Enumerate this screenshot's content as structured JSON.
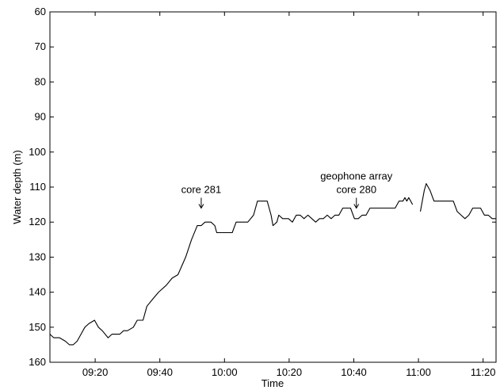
{
  "chart_data": {
    "type": "line",
    "title": "",
    "xlabel": "Time",
    "ylabel": "Water depth (m)",
    "x_unit": "minutes",
    "xlim": [
      9.1,
      11.4
    ],
    "ylim": [
      60,
      160
    ],
    "y_inverted": true,
    "xticks": [
      {
        "value": 9.3333,
        "label": "09:20"
      },
      {
        "value": 9.6667,
        "label": "09:40"
      },
      {
        "value": 10.0,
        "label": "10:00"
      },
      {
        "value": 10.3333,
        "label": "10:20"
      },
      {
        "value": 10.6667,
        "label": "10:40"
      },
      {
        "value": 11.0,
        "label": "11:00"
      },
      {
        "value": 11.3333,
        "label": "11:20"
      }
    ],
    "yticks": [
      60,
      70,
      80,
      90,
      100,
      110,
      120,
      130,
      140,
      150,
      160
    ],
    "grid": false,
    "series": [
      {
        "name": "",
        "color": "#000000",
        "segments": [
          [
            [
              9.1,
              152
            ],
            [
              9.12,
              153
            ],
            [
              9.15,
              153
            ],
            [
              9.18,
              154
            ],
            [
              9.2,
              155
            ],
            [
              9.22,
              155
            ],
            [
              9.24,
              154
            ],
            [
              9.26,
              152
            ],
            [
              9.28,
              150
            ],
            [
              9.3,
              149
            ],
            [
              9.33,
              148
            ],
            [
              9.35,
              150
            ],
            [
              9.37,
              151
            ],
            [
              9.4,
              153
            ],
            [
              9.42,
              152
            ],
            [
              9.44,
              152
            ],
            [
              9.46,
              152
            ],
            [
              9.48,
              151
            ],
            [
              9.5,
              151
            ],
            [
              9.53,
              150
            ],
            [
              9.55,
              148
            ],
            [
              9.58,
              148
            ],
            [
              9.6,
              144
            ],
            [
              9.63,
              142
            ],
            [
              9.66,
              140
            ],
            [
              9.7,
              138
            ],
            [
              9.73,
              136
            ],
            [
              9.76,
              135
            ],
            [
              9.8,
              130
            ],
            [
              9.83,
              125
            ],
            [
              9.86,
              121
            ],
            [
              9.88,
              121
            ],
            [
              9.9,
              120
            ],
            [
              9.93,
              120
            ],
            [
              9.95,
              121
            ],
            [
              9.96,
              123
            ],
            [
              9.98,
              123
            ],
            [
              10.0,
              123
            ],
            [
              10.02,
              123
            ],
            [
              10.04,
              123
            ],
            [
              10.06,
              120
            ],
            [
              10.08,
              120
            ],
            [
              10.1,
              120
            ],
            [
              10.12,
              120
            ],
            [
              10.15,
              118
            ],
            [
              10.17,
              114
            ],
            [
              10.2,
              114
            ],
            [
              10.22,
              114
            ],
            [
              10.24,
              118
            ],
            [
              10.25,
              121
            ],
            [
              10.27,
              120
            ],
            [
              10.28,
              118
            ],
            [
              10.3,
              119
            ],
            [
              10.33,
              119
            ],
            [
              10.35,
              120
            ],
            [
              10.37,
              118
            ],
            [
              10.39,
              118
            ],
            [
              10.41,
              119
            ],
            [
              10.43,
              118
            ],
            [
              10.45,
              119
            ],
            [
              10.47,
              120
            ],
            [
              10.49,
              119
            ],
            [
              10.51,
              119
            ],
            [
              10.53,
              118
            ],
            [
              10.55,
              119
            ],
            [
              10.57,
              118
            ],
            [
              10.59,
              118
            ],
            [
              10.61,
              116
            ],
            [
              10.63,
              116
            ],
            [
              10.65,
              116
            ],
            [
              10.67,
              119
            ],
            [
              10.69,
              119
            ],
            [
              10.71,
              118
            ],
            [
              10.73,
              118
            ],
            [
              10.75,
              116
            ],
            [
              10.77,
              116
            ],
            [
              10.8,
              116
            ],
            [
              10.83,
              116
            ],
            [
              10.86,
              116
            ],
            [
              10.88,
              116
            ],
            [
              10.9,
              114
            ],
            [
              10.92,
              114
            ],
            [
              10.93,
              113
            ],
            [
              10.94,
              114
            ],
            [
              10.95,
              113
            ],
            [
              10.96,
              114
            ],
            [
              10.97,
              115
            ]
          ],
          [
            [
              11.01,
              117
            ],
            [
              11.03,
              111
            ],
            [
              11.04,
              109
            ],
            [
              11.06,
              111
            ],
            [
              11.08,
              114
            ],
            [
              11.1,
              114
            ],
            [
              11.12,
              114
            ],
            [
              11.15,
              114
            ],
            [
              11.18,
              114
            ],
            [
              11.2,
              117
            ],
            [
              11.22,
              118
            ],
            [
              11.24,
              119
            ],
            [
              11.26,
              118
            ],
            [
              11.28,
              116
            ],
            [
              11.3,
              116
            ],
            [
              11.32,
              116
            ],
            [
              11.34,
              118
            ],
            [
              11.36,
              118
            ],
            [
              11.38,
              119
            ],
            [
              11.4,
              119
            ]
          ]
        ]
      }
    ],
    "annotations": [
      {
        "lines": [
          "core 281"
        ],
        "x": 9.88,
        "y": 116
      },
      {
        "lines": [
          "geophone array",
          "core 280"
        ],
        "x": 10.68,
        "y": 116
      }
    ]
  }
}
